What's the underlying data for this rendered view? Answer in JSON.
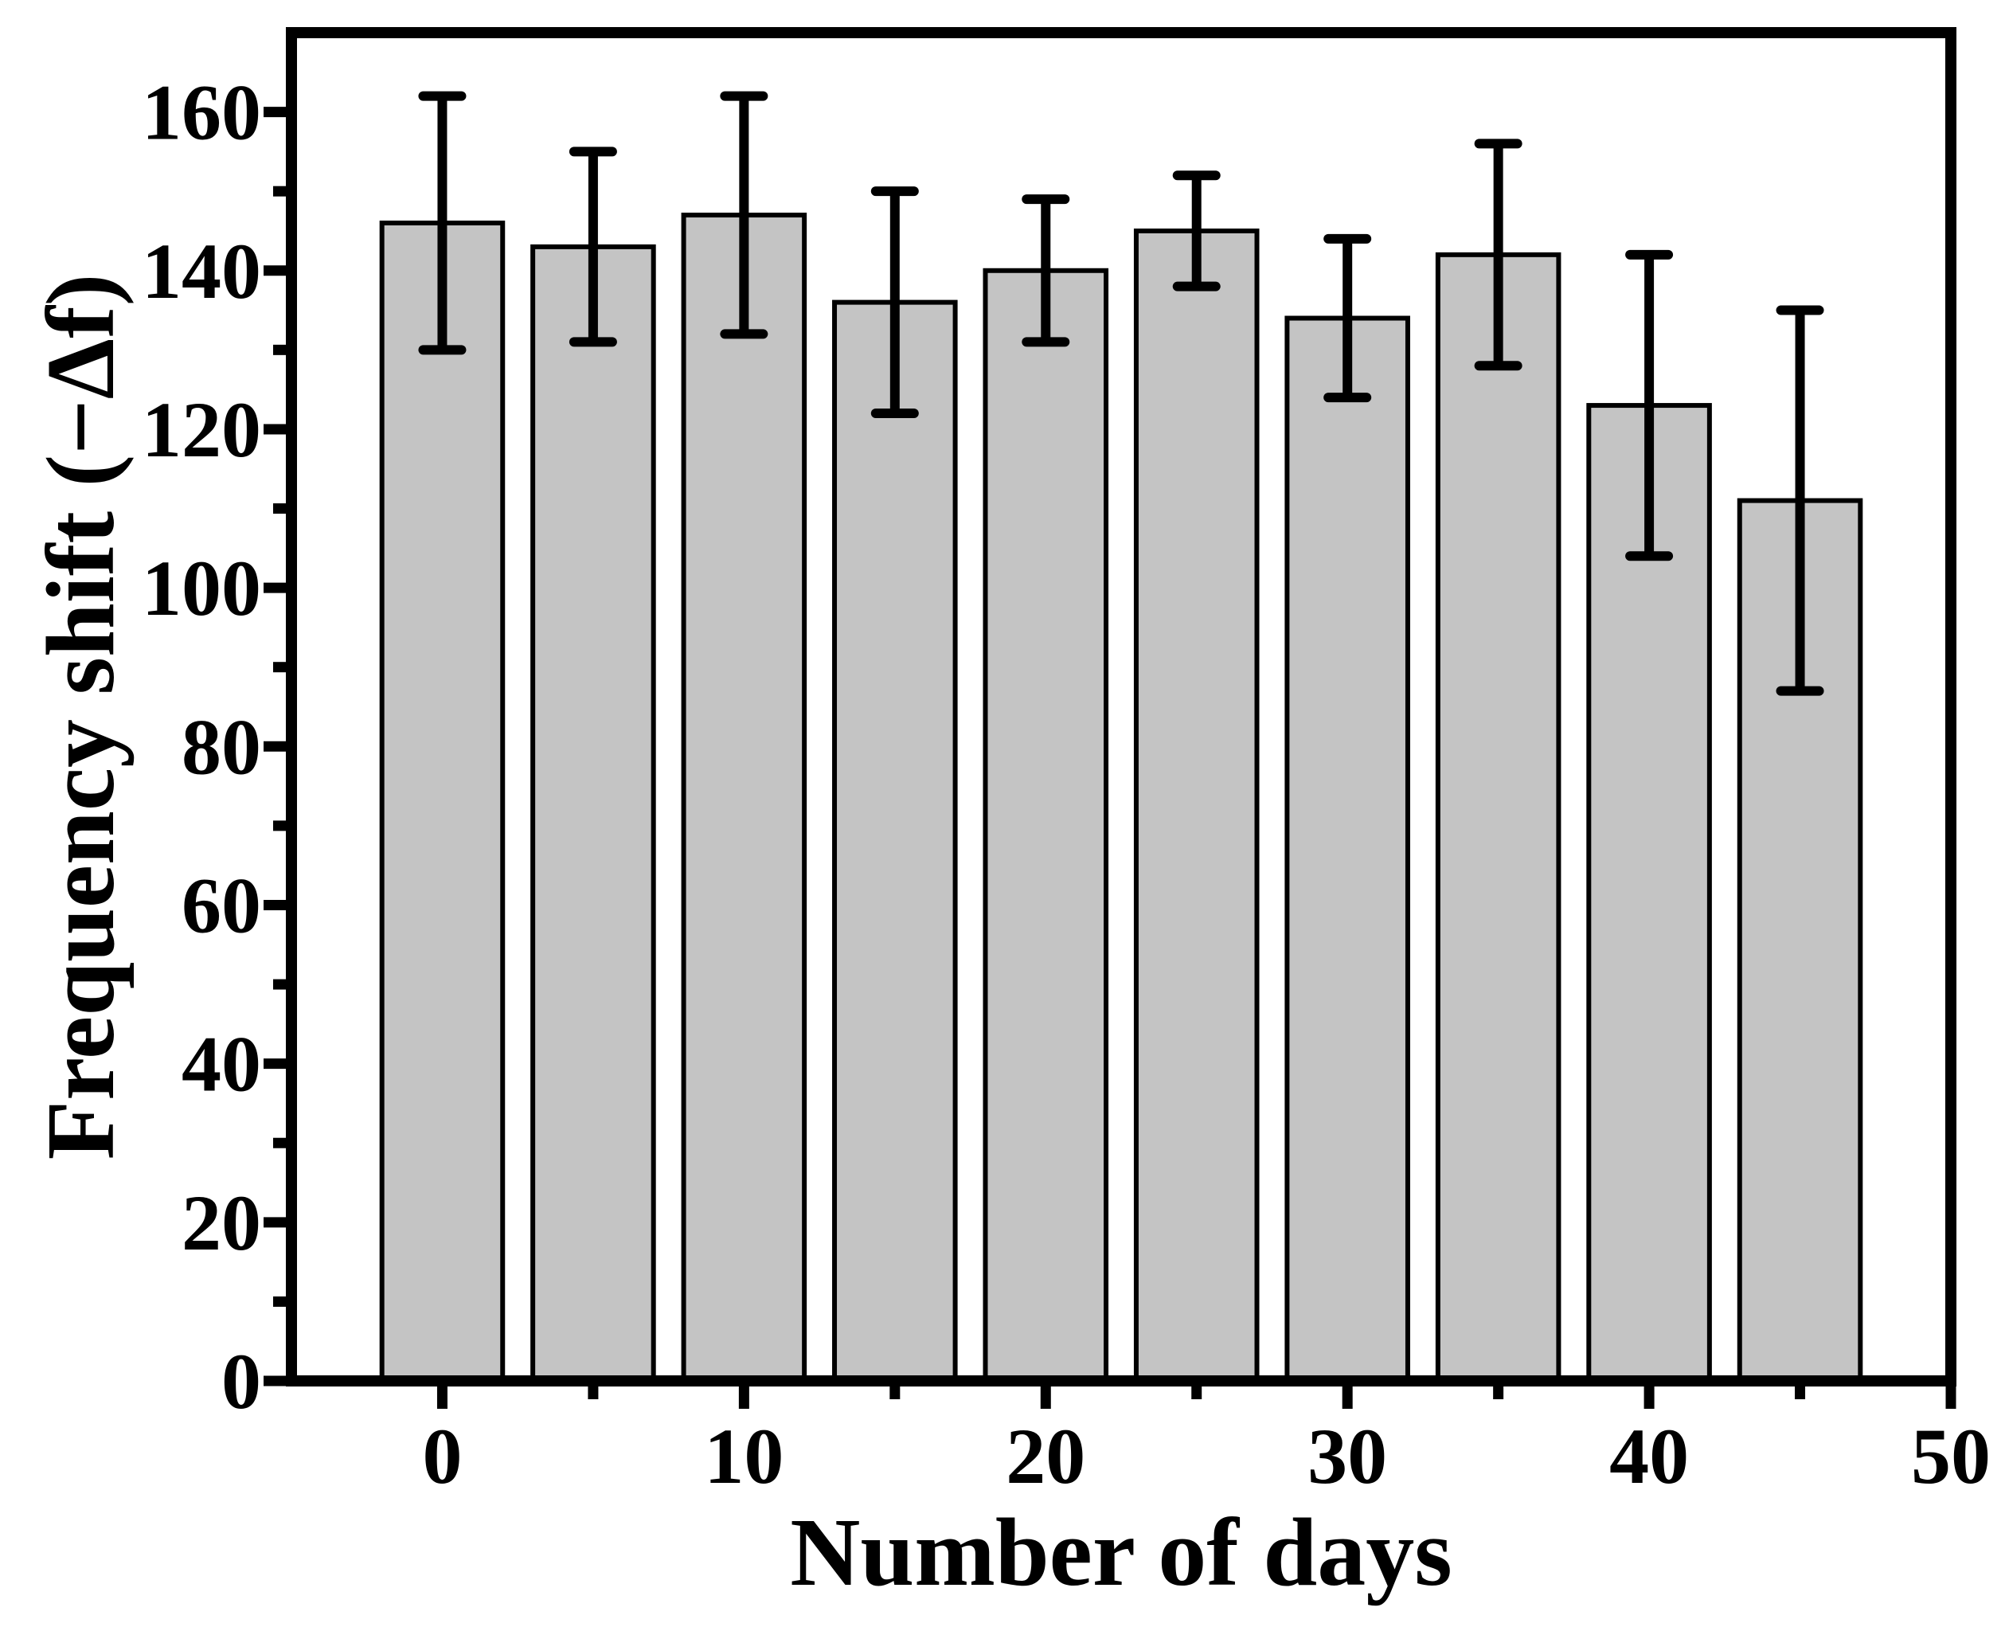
{
  "chart_data": {
    "type": "bar",
    "title": "",
    "xlabel": "Number of days",
    "ylabel": "Frequency shift (−Δf)",
    "x": [
      0,
      5,
      10,
      15,
      20,
      25,
      30,
      35,
      40,
      45
    ],
    "values": [
      146,
      143,
      147,
      136,
      140,
      145,
      134,
      142,
      123,
      111
    ],
    "errors": [
      16,
      12,
      15,
      14,
      9,
      7,
      10,
      14,
      19,
      24
    ],
    "xlim": [
      -5,
      50
    ],
    "ylim": [
      0,
      170
    ],
    "x_major_ticks": [
      0,
      10,
      20,
      30,
      40,
      50
    ],
    "x_minor_ticks": [
      5,
      15,
      25,
      35,
      45
    ],
    "y_major_ticks": [
      0,
      20,
      40,
      60,
      80,
      100,
      120,
      140,
      160
    ],
    "y_minor_ticks": [
      10,
      30,
      50,
      70,
      90,
      110,
      130,
      150
    ],
    "bar_width_days": 4,
    "bar_fill": "#c4c4c4",
    "bar_stroke": "#000000",
    "axis_color": "#000000",
    "background": "#ffffff",
    "grid": false,
    "legend": null
  }
}
